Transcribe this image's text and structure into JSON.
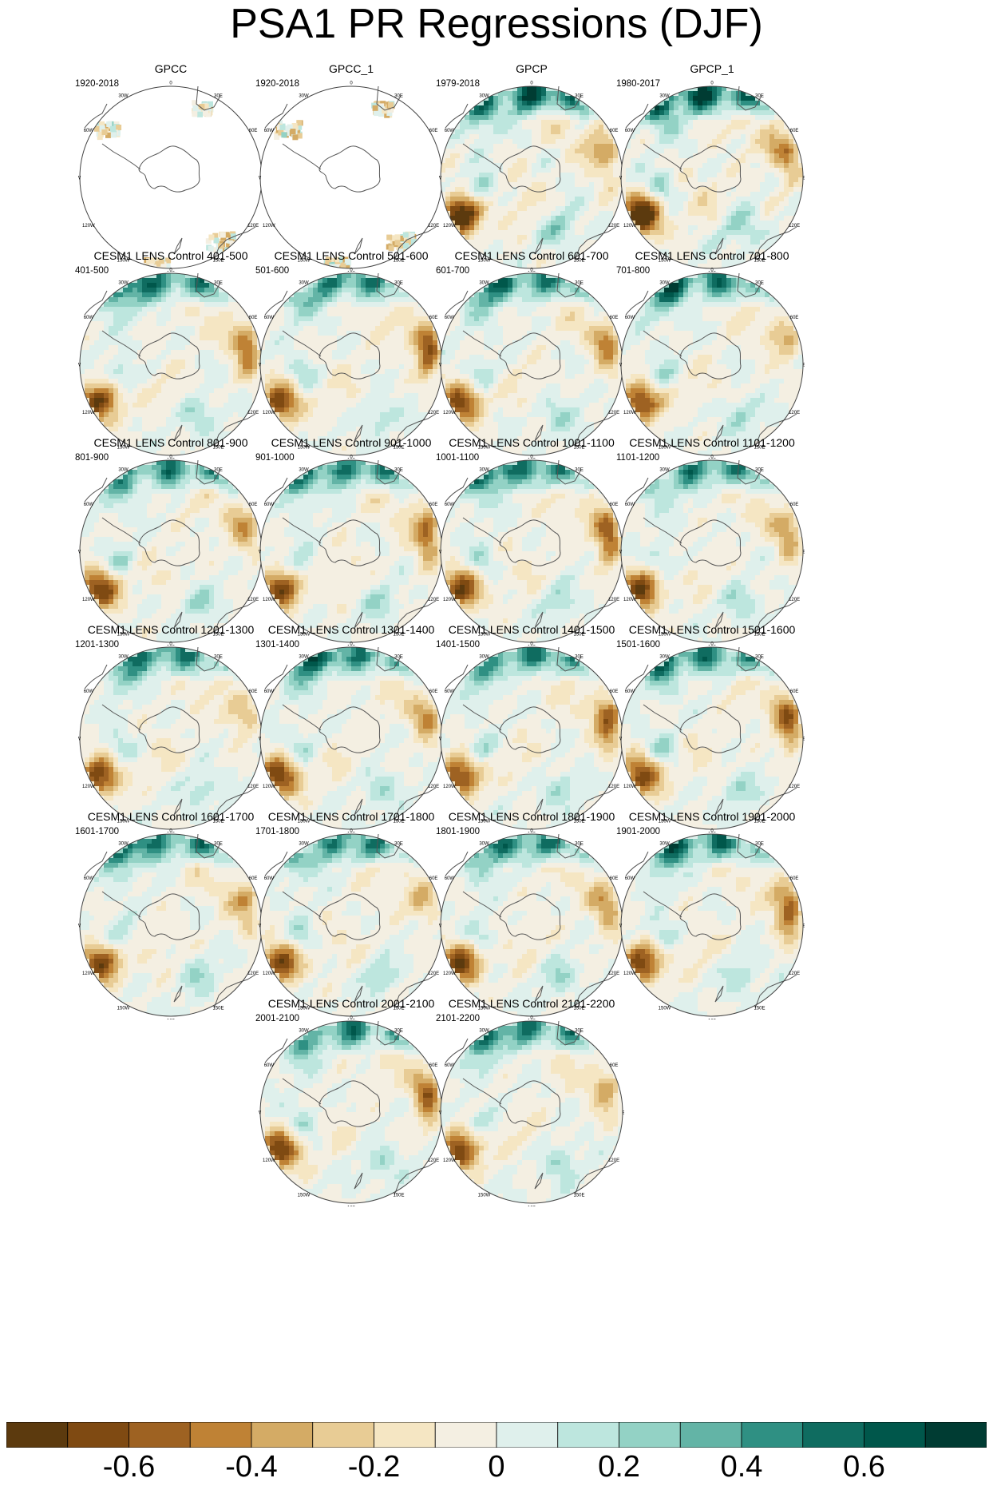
{
  "title": "PSA1 PR Regressions (DJF)",
  "panels": [
    {
      "title": "GPCC",
      "period": "1920-2018",
      "kind": "gpcc"
    },
    {
      "title": "GPCC_1",
      "period": "1920-2018",
      "kind": "gpcc"
    },
    {
      "title": "GPCP",
      "period": "1979-2018",
      "kind": "gpcp"
    },
    {
      "title": "GPCP_1",
      "period": "1980-2017",
      "kind": "gpcp"
    },
    {
      "title": "CESM1 LENS Control 401-500",
      "period": "401-500",
      "kind": "model"
    },
    {
      "title": "CESM1 LENS Control 501-600",
      "period": "501-600",
      "kind": "model"
    },
    {
      "title": "CESM1 LENS Control 601-700",
      "period": "601-700",
      "kind": "model"
    },
    {
      "title": "CESM1 LENS Control 701-800",
      "period": "701-800",
      "kind": "model"
    },
    {
      "title": "CESM1 LENS Control 801-900",
      "period": "801-900",
      "kind": "model"
    },
    {
      "title": "CESM1 LENS Control 901-1000",
      "period": "901-1000",
      "kind": "model"
    },
    {
      "title": "CESM1 LENS Control 1001-1100",
      "period": "1001-1100",
      "kind": "model"
    },
    {
      "title": "CESM1 LENS Control 1101-1200",
      "period": "1101-1200",
      "kind": "model"
    },
    {
      "title": "CESM1 LENS Control 1201-1300",
      "period": "1201-1300",
      "kind": "model"
    },
    {
      "title": "CESM1 LENS Control 1301-1400",
      "period": "1301-1400",
      "kind": "model"
    },
    {
      "title": "CESM1 LENS Control 1401-1500",
      "period": "1401-1500",
      "kind": "model"
    },
    {
      "title": "CESM1 LENS Control 1501-1600",
      "period": "1501-1600",
      "kind": "model"
    },
    {
      "title": "CESM1 LENS Control 1601-1700",
      "period": "1601-1700",
      "kind": "model"
    },
    {
      "title": "CESM1 LENS Control 1701-1800",
      "period": "1701-1800",
      "kind": "model"
    },
    {
      "title": "CESM1 LENS Control 1801-1900",
      "period": "1801-1900",
      "kind": "model"
    },
    {
      "title": "CESM1 LENS Control 1901-2000",
      "period": "1901-2000",
      "kind": "model"
    },
    {
      "title": "CESM1 LENS Control 2001-2100",
      "period": "2001-2100",
      "kind": "model"
    },
    {
      "title": "CESM1 LENS Control 2101-2200",
      "period": "2101-2200",
      "kind": "model"
    }
  ],
  "map_labels": [
    "0",
    "30E",
    "60E",
    "90E",
    "120E",
    "150E",
    "180",
    "150W",
    "120W",
    "90W",
    "60W",
    "30W"
  ],
  "colorbar": {
    "colors": [
      "#5c3a0e",
      "#7f4a12",
      "#9e6222",
      "#bf8235",
      "#d4ab65",
      "#e8cc95",
      "#f5e6c3",
      "#f4efe2",
      "#dff0ec",
      "#bde6de",
      "#93d2c5",
      "#63b4a6",
      "#2f9083",
      "#0f6c60",
      "#00574b",
      "#003c33"
    ],
    "tick_labels": [
      "-0.6",
      "-0.4",
      "-0.2",
      "0",
      "0.2",
      "0.4",
      "0.6"
    ]
  },
  "chart_data": {
    "type": "heatmap",
    "title": "PSA1 PR Regressions (DJF)",
    "projection": "south polar stereographic",
    "panels": [
      "GPCC",
      "GPCC_1",
      "GPCP",
      "GPCP_1",
      "CESM1 LENS Control 401-500",
      "CESM1 LENS Control 501-600",
      "CESM1 LENS Control 601-700",
      "CESM1 LENS Control 701-800",
      "CESM1 LENS Control 801-900",
      "CESM1 LENS Control 901-1000",
      "CESM1 LENS Control 1001-1100",
      "CESM1 LENS Control 1101-1200",
      "CESM1 LENS Control 1201-1300",
      "CESM1 LENS Control 1301-1400",
      "CESM1 LENS Control 1401-1500",
      "CESM1 LENS Control 1501-1600",
      "CESM1 LENS Control 1601-1700",
      "CESM1 LENS Control 1701-1800",
      "CESM1 LENS Control 1801-1900",
      "CESM1 LENS Control 1901-2000",
      "CESM1 LENS Control 2001-2100",
      "CESM1 LENS Control 2101-2200"
    ],
    "colorbar_ticks": [
      -0.6,
      -0.4,
      -0.2,
      0,
      0.2,
      0.4,
      0.6
    ],
    "colorbar_range": [
      -0.8,
      0.8
    ],
    "n_color_levels": 16
  }
}
